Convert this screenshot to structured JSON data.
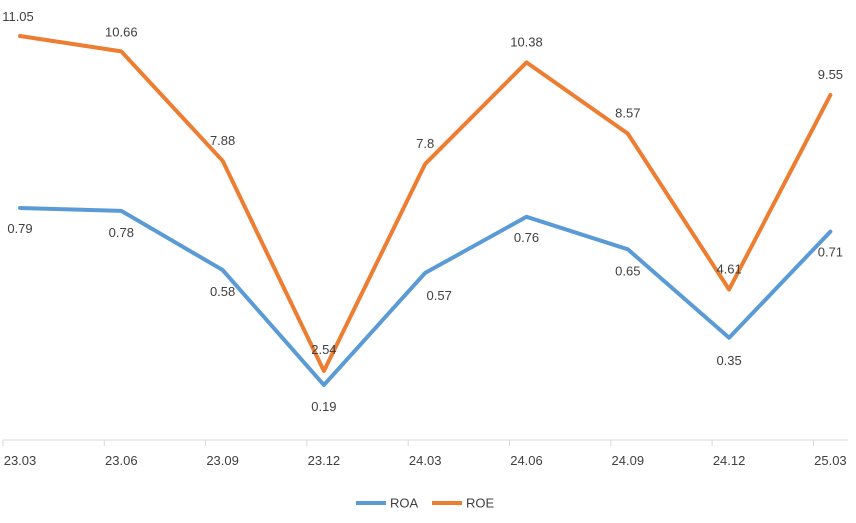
{
  "chart_data": {
    "type": "line",
    "title": "",
    "xlabel": "",
    "ylabel": "",
    "categories": [
      "23.03",
      "23.06",
      "23.09",
      "23.12",
      "24.03",
      "24.06",
      "24.09",
      "24.12",
      "25.03"
    ],
    "series": [
      {
        "name": "ROA",
        "values": [
          0.79,
          0.78,
          0.58,
          0.19,
          0.57,
          0.76,
          0.65,
          0.35,
          0.71
        ],
        "labels": [
          "0.79",
          "0.78",
          "0.58",
          "0.19",
          "0.57",
          "0.76",
          "0.65",
          "0.35",
          "0.71"
        ],
        "color": "#5b9bd5"
      },
      {
        "name": "ROE",
        "values": [
          11.05,
          10.66,
          7.88,
          2.54,
          7.8,
          10.38,
          8.57,
          4.61,
          9.55
        ],
        "labels": [
          "11.05",
          "10.66",
          "7.88",
          "2.54",
          "7.8",
          "10.38",
          "8.57",
          "4.61",
          "9.55"
        ],
        "color": "#ed7d31"
      }
    ],
    "axis_color": "#d9d9d9",
    "text_color": "#404040",
    "grid": false,
    "legend_position": "bottom"
  }
}
